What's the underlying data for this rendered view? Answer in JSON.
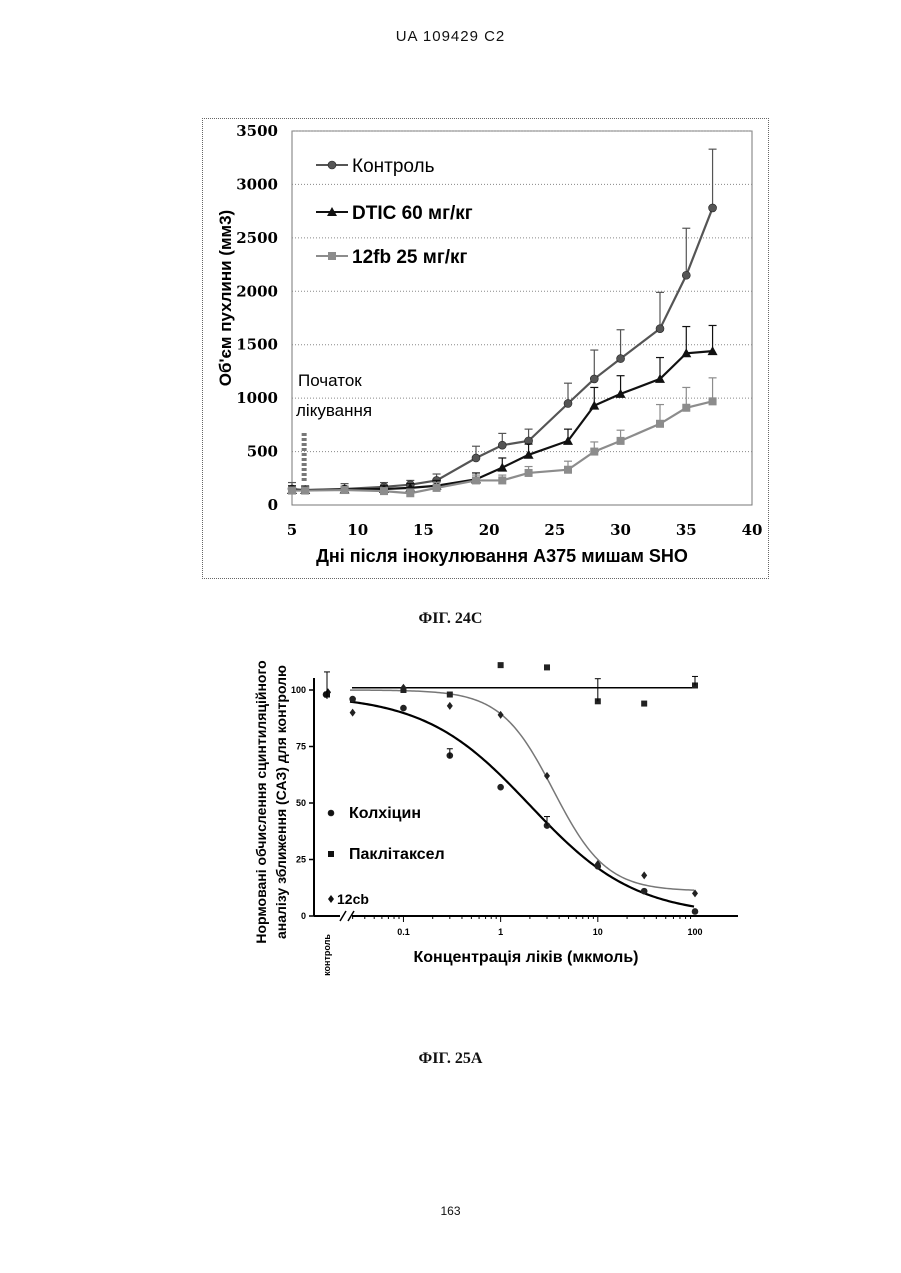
{
  "header": {
    "patent_id": "UA   109429   C2"
  },
  "page_number": "163",
  "figures": [
    {
      "label": "ФІГ. 24С"
    },
    {
      "label": "ФІГ. 25А"
    }
  ],
  "chart_data": [
    {
      "type": "line",
      "title": "",
      "xlabel": "Дні після інокулювання А375 мишам SHO",
      "ylabel": "Об'єм пухлини (мм3)",
      "xlim": [
        5,
        40
      ],
      "ylim": [
        0,
        3500
      ],
      "xticks": [
        "5",
        "10",
        "15",
        "20",
        "25",
        "30",
        "35",
        "40"
      ],
      "yticks": [
        "0",
        "500",
        "1000",
        "1500",
        "2000",
        "2500",
        "3000",
        "3500"
      ],
      "grid": "horizontal dotted",
      "legend": "top-left",
      "annotation": [
        "Початок",
        "лікування"
      ],
      "annotation_x": 6,
      "series": [
        {
          "name": "Контроль",
          "marker": "circle",
          "color": "#555555",
          "x": [
            5,
            6,
            9,
            12,
            14,
            16,
            19,
            21,
            23,
            26,
            28,
            30,
            33,
            35,
            37
          ],
          "y": [
            150,
            140,
            150,
            170,
            190,
            230,
            440,
            560,
            600,
            950,
            1180,
            1370,
            1650,
            2150,
            2780
          ],
          "err": [
            60,
            40,
            50,
            40,
            40,
            60,
            110,
            110,
            110,
            190,
            270,
            270,
            340,
            440,
            550
          ]
        },
        {
          "name": "DTIC 60 мг/кг",
          "marker": "triangle",
          "color": "#111111",
          "x": [
            5,
            6,
            9,
            12,
            14,
            16,
            19,
            21,
            23,
            26,
            28,
            30,
            33,
            35,
            37
          ],
          "y": [
            140,
            140,
            145,
            150,
            160,
            180,
            240,
            350,
            470,
            600,
            930,
            1040,
            1180,
            1420,
            1440
          ],
          "err": [
            40,
            30,
            30,
            30,
            40,
            50,
            60,
            90,
            100,
            110,
            170,
            170,
            200,
            250,
            240
          ]
        },
        {
          "name": "12fb 25 мг/кг",
          "marker": "square",
          "color": "#8c8c8c",
          "x": [
            5,
            6,
            9,
            12,
            14,
            16,
            19,
            21,
            23,
            26,
            28,
            30,
            33,
            35,
            37
          ],
          "y": [
            135,
            135,
            140,
            130,
            110,
            160,
            230,
            230,
            300,
            330,
            500,
            600,
            760,
            910,
            970
          ],
          "err": [
            30,
            30,
            30,
            30,
            40,
            50,
            50,
            50,
            60,
            80,
            90,
            100,
            180,
            190,
            220
          ]
        }
      ]
    },
    {
      "type": "scatter",
      "title": "",
      "xlabel": "Концентрація ліків (мкмоль)",
      "ylabel": [
        "Нормовані обчислення сцинтиляційного",
        "аналізу зближення (САЗ) для контролю"
      ],
      "x_scale": "log",
      "xlim": [
        0.01,
        100
      ],
      "ylim": [
        0,
        100
      ],
      "xticks": [
        "0.1",
        "1",
        "10",
        "100"
      ],
      "yticks": [
        "0",
        "25",
        "50",
        "75",
        "100"
      ],
      "control_label": "контроль",
      "legend": "bottom-left",
      "series": [
        {
          "name": "Колхіцин",
          "marker": "circle",
          "curve": "solid-thick",
          "control": 98,
          "x": [
            0.03,
            0.1,
            0.3,
            1,
            3,
            10,
            30,
            100
          ],
          "y": [
            96,
            92,
            71,
            57,
            40,
            22,
            11,
            2
          ],
          "fit": {
            "top": 98,
            "bottom": 0,
            "ic50": 2.0,
            "hill": 0.8
          }
        },
        {
          "name": "Паклітаксел",
          "marker": "square",
          "curve": "flat",
          "control": 98,
          "x": [
            0.1,
            0.3,
            1,
            3,
            10,
            30,
            100
          ],
          "y": [
            100,
            98,
            111,
            110,
            95,
            94,
            102
          ],
          "fit": {
            "level": 101
          }
        },
        {
          "name": "12cb",
          "marker": "diamond",
          "curve": "solid-grey",
          "control": 99,
          "x": [
            0.03,
            0.1,
            0.3,
            1,
            3,
            10,
            30,
            100
          ],
          "y": [
            90,
            101,
            93,
            89,
            62,
            23,
            18,
            10
          ],
          "fit": {
            "top": 100,
            "bottom": 11,
            "ic50": 3.5,
            "hill": 1.6
          }
        }
      ]
    }
  ]
}
